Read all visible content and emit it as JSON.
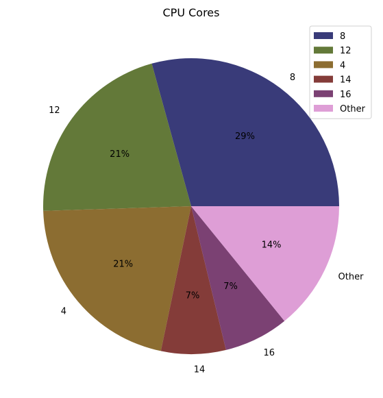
{
  "chart_data": {
    "type": "pie",
    "title": "CPU Cores",
    "categories": [
      "8",
      "12",
      "4",
      "14",
      "16",
      "Other"
    ],
    "values": [
      29,
      21,
      21,
      7,
      7,
      14
    ],
    "percent_labels": [
      "29%",
      "21%",
      "21%",
      "7%",
      "7%",
      "14%"
    ],
    "colors": [
      "#393b79",
      "#637939",
      "#8c6d31",
      "#843c39",
      "#7b4173",
      "#de9ed6"
    ],
    "legend": {
      "placement": "top-right",
      "entries": [
        "8",
        "12",
        "4",
        "14",
        "16",
        "Other"
      ]
    }
  }
}
